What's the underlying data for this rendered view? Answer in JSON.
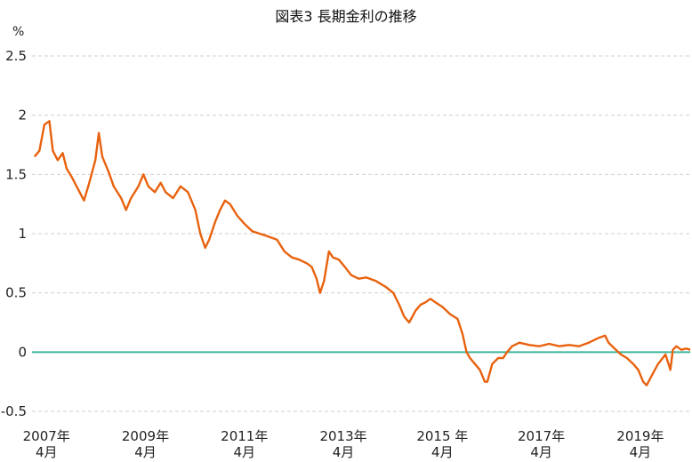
{
  "chart_data": {
    "type": "line",
    "title": "図表3 長期金利の推移",
    "ylabel": "%",
    "ylim": [
      -0.5,
      2.5
    ],
    "yticks": [
      2.5,
      2,
      1.5,
      1,
      0.5,
      0,
      -0.5
    ],
    "ytick_labels": [
      "2.5",
      "2",
      "1.5",
      "1",
      "0.5",
      "0",
      "-0.5"
    ],
    "xlim": [
      2007.3,
      2020.6
    ],
    "xticks": [
      {
        "year": 2007.25,
        "line1": "2007年",
        "line2": "4月"
      },
      {
        "year": 2009.25,
        "line1": "2009年",
        "line2": "4月"
      },
      {
        "year": 2011.25,
        "line1": "2011年",
        "line2": "4月"
      },
      {
        "year": 2013.25,
        "line1": "2013年",
        "line2": "4月"
      },
      {
        "year": 2015.25,
        "line1": "2015 年",
        "line2": "4月"
      },
      {
        "year": 2017.25,
        "line1": "2017年",
        "line2": "4月"
      },
      {
        "year": 2019.25,
        "line1": "2019年",
        "line2": "4月"
      }
    ],
    "grid": true,
    "reference_line": {
      "y": 0,
      "color": "#3fb59d"
    },
    "series": [
      {
        "color": "#e8620f",
        "points": [
          [
            2007.35,
            1.65
          ],
          [
            2007.45,
            1.7
          ],
          [
            2007.55,
            1.92
          ],
          [
            2007.65,
            1.95
          ],
          [
            2007.72,
            1.7
          ],
          [
            2007.82,
            1.62
          ],
          [
            2007.92,
            1.68
          ],
          [
            2008.0,
            1.55
          ],
          [
            2008.1,
            1.48
          ],
          [
            2008.2,
            1.4
          ],
          [
            2008.35,
            1.28
          ],
          [
            2008.45,
            1.42
          ],
          [
            2008.58,
            1.62
          ],
          [
            2008.65,
            1.85
          ],
          [
            2008.72,
            1.65
          ],
          [
            2008.85,
            1.52
          ],
          [
            2008.95,
            1.4
          ],
          [
            2009.1,
            1.3
          ],
          [
            2009.2,
            1.2
          ],
          [
            2009.3,
            1.3
          ],
          [
            2009.45,
            1.4
          ],
          [
            2009.55,
            1.5
          ],
          [
            2009.65,
            1.4
          ],
          [
            2009.78,
            1.35
          ],
          [
            2009.9,
            1.43
          ],
          [
            2010.0,
            1.35
          ],
          [
            2010.15,
            1.3
          ],
          [
            2010.3,
            1.4
          ],
          [
            2010.45,
            1.35
          ],
          [
            2010.6,
            1.2
          ],
          [
            2010.7,
            1.0
          ],
          [
            2010.8,
            0.88
          ],
          [
            2010.88,
            0.95
          ],
          [
            2011.0,
            1.1
          ],
          [
            2011.1,
            1.2
          ],
          [
            2011.2,
            1.28
          ],
          [
            2011.3,
            1.25
          ],
          [
            2011.45,
            1.15
          ],
          [
            2011.6,
            1.08
          ],
          [
            2011.75,
            1.02
          ],
          [
            2011.9,
            1.0
          ],
          [
            2012.05,
            0.98
          ],
          [
            2012.25,
            0.95
          ],
          [
            2012.4,
            0.85
          ],
          [
            2012.55,
            0.8
          ],
          [
            2012.7,
            0.78
          ],
          [
            2012.85,
            0.75
          ],
          [
            2012.95,
            0.72
          ],
          [
            2013.05,
            0.62
          ],
          [
            2013.12,
            0.5
          ],
          [
            2013.2,
            0.6
          ],
          [
            2013.3,
            0.85
          ],
          [
            2013.38,
            0.8
          ],
          [
            2013.5,
            0.78
          ],
          [
            2013.62,
            0.72
          ],
          [
            2013.75,
            0.65
          ],
          [
            2013.9,
            0.62
          ],
          [
            2014.05,
            0.63
          ],
          [
            2014.25,
            0.6
          ],
          [
            2014.45,
            0.55
          ],
          [
            2014.6,
            0.5
          ],
          [
            2014.72,
            0.4
          ],
          [
            2014.82,
            0.3
          ],
          [
            2014.92,
            0.25
          ],
          [
            2015.05,
            0.35
          ],
          [
            2015.15,
            0.4
          ],
          [
            2015.25,
            0.42
          ],
          [
            2015.35,
            0.45
          ],
          [
            2015.45,
            0.42
          ],
          [
            2015.6,
            0.38
          ],
          [
            2015.75,
            0.32
          ],
          [
            2015.9,
            0.28
          ],
          [
            2016.0,
            0.15
          ],
          [
            2016.08,
            0.0
          ],
          [
            2016.15,
            -0.05
          ],
          [
            2016.25,
            -0.1
          ],
          [
            2016.35,
            -0.15
          ],
          [
            2016.45,
            -0.25
          ],
          [
            2016.5,
            -0.25
          ],
          [
            2016.6,
            -0.1
          ],
          [
            2016.72,
            -0.05
          ],
          [
            2016.82,
            -0.05
          ],
          [
            2016.9,
            0.0
          ],
          [
            2017.0,
            0.05
          ],
          [
            2017.15,
            0.08
          ],
          [
            2017.35,
            0.06
          ],
          [
            2017.55,
            0.05
          ],
          [
            2017.75,
            0.07
          ],
          [
            2017.95,
            0.05
          ],
          [
            2018.15,
            0.06
          ],
          [
            2018.35,
            0.05
          ],
          [
            2018.55,
            0.08
          ],
          [
            2018.75,
            0.12
          ],
          [
            2018.88,
            0.14
          ],
          [
            2018.95,
            0.08
          ],
          [
            2019.1,
            0.02
          ],
          [
            2019.2,
            -0.02
          ],
          [
            2019.32,
            -0.05
          ],
          [
            2019.45,
            -0.1
          ],
          [
            2019.55,
            -0.15
          ],
          [
            2019.65,
            -0.25
          ],
          [
            2019.72,
            -0.28
          ],
          [
            2019.82,
            -0.2
          ],
          [
            2019.95,
            -0.1
          ],
          [
            2020.1,
            -0.02
          ],
          [
            2020.2,
            -0.15
          ],
          [
            2020.25,
            0.02
          ],
          [
            2020.32,
            0.05
          ],
          [
            2020.42,
            0.02
          ],
          [
            2020.52,
            0.03
          ],
          [
            2020.6,
            0.02
          ]
        ]
      }
    ]
  }
}
